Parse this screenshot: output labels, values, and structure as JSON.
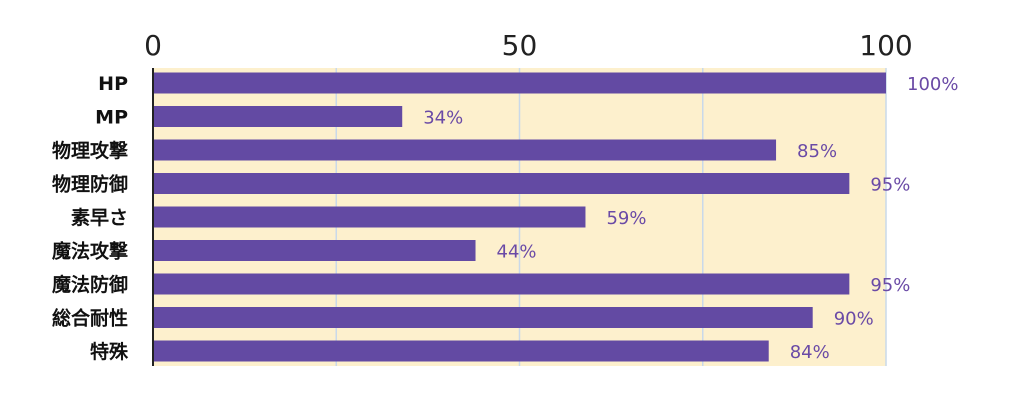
{
  "chart_data": {
    "type": "bar",
    "orientation": "horizontal",
    "categories": [
      "HP",
      "MP",
      "物理攻撃",
      "物理防御",
      "素早さ",
      "魔法攻撃",
      "魔法防御",
      "総合耐性",
      "特殊"
    ],
    "values": [
      100,
      34,
      85,
      95,
      59,
      44,
      95,
      90,
      84
    ],
    "value_labels": [
      "100%",
      "34%",
      "85%",
      "95%",
      "59%",
      "44%",
      "95%",
      "90%",
      "84%"
    ],
    "xticks": [
      0,
      50,
      100
    ],
    "xtick_labels": [
      "0",
      "50",
      "100"
    ],
    "xlim": [
      0,
      100
    ],
    "axis_position": "top",
    "grid": true,
    "title": "",
    "xlabel": "",
    "ylabel": "",
    "colors": {
      "bar": "#634aa3",
      "plot_background": "#fdf0cd",
      "grid": "#c9d9ea",
      "value_label": "#6a4aa6"
    }
  }
}
